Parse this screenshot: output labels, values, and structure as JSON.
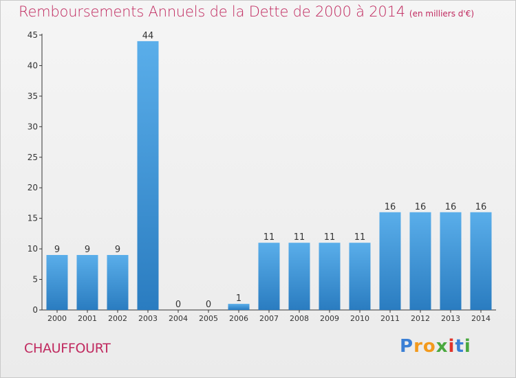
{
  "chart_data": {
    "type": "bar",
    "title": "Remboursements Annuels de la Dette de 2000 à 2014",
    "subtitle": "(en milliers d'€)",
    "categories": [
      "2000",
      "2001",
      "2002",
      "2003",
      "2004",
      "2005",
      "2006",
      "2007",
      "2008",
      "2009",
      "2010",
      "2011",
      "2012",
      "2013",
      "2014"
    ],
    "values": [
      9,
      9,
      9,
      44,
      0,
      0,
      1,
      11,
      11,
      11,
      11,
      16,
      16,
      16,
      16
    ],
    "ylim": [
      0,
      45
    ],
    "yticks": [
      0,
      5,
      10,
      15,
      20,
      25,
      30,
      35,
      40,
      45
    ],
    "grid": false,
    "data_labels": true
  },
  "commune": "CHAUFFOURT",
  "logo": {
    "name": "Proxiti",
    "letters": [
      "P",
      "r",
      "o",
      "x",
      "i",
      "t",
      "i"
    ],
    "colors": [
      "#3a7fd5",
      "#f39a1d",
      "#f39a1d",
      "#4aa83f",
      "#e0342b",
      "#3a7fd5",
      "#4aa83f"
    ]
  },
  "colors": {
    "title": "#c0285e",
    "bar_light": "#5aaeea",
    "bar_dark": "#2a7cc0",
    "axis": "#333333"
  }
}
